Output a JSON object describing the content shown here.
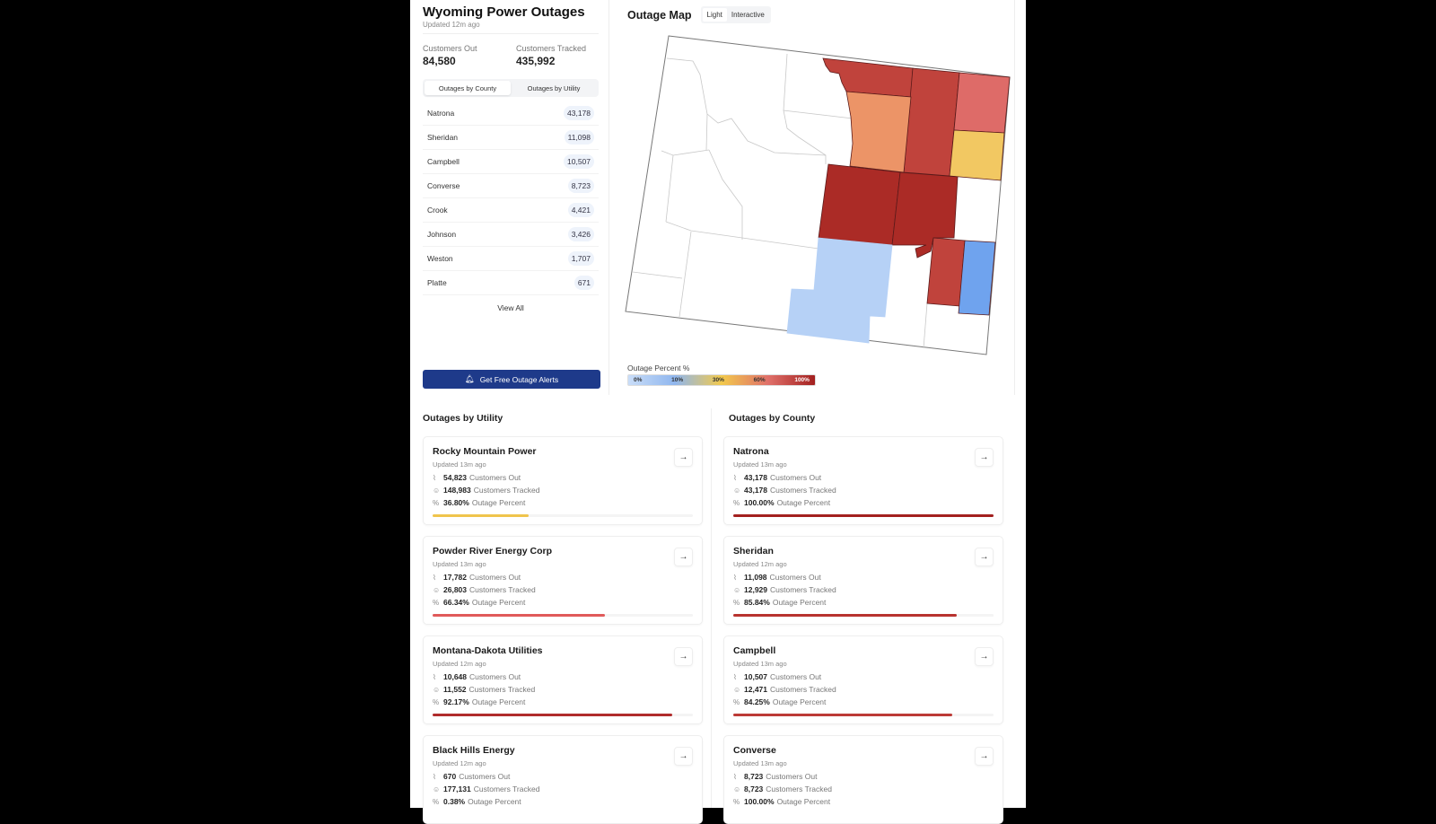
{
  "header": {
    "title": "Wyoming Power Outages",
    "updated": "Updated 12m ago"
  },
  "stats": {
    "out_label": "Customers Out",
    "out_value": "84,580",
    "tracked_label": "Customers Tracked",
    "tracked_value": "435,992"
  },
  "tabs": [
    {
      "label": "Outages by County",
      "active": true
    },
    {
      "label": "Outages by Utility",
      "active": false
    }
  ],
  "county_list": [
    {
      "name": "Natrona",
      "value": "43,178"
    },
    {
      "name": "Sheridan",
      "value": "11,098"
    },
    {
      "name": "Campbell",
      "value": "10,507"
    },
    {
      "name": "Converse",
      "value": "8,723"
    },
    {
      "name": "Crook",
      "value": "4,421"
    },
    {
      "name": "Johnson",
      "value": "3,426"
    },
    {
      "name": "Weston",
      "value": "1,707"
    },
    {
      "name": "Platte",
      "value": "671"
    }
  ],
  "view_all": "View All",
  "alert_button": {
    "label": "Get Free Outage Alerts",
    "icon": "bell-icon",
    "color": "#1e3a8a"
  },
  "map": {
    "title": "Outage Map",
    "modes": [
      "Light",
      "Interactive"
    ],
    "active_mode": "Light",
    "legend": {
      "title": "Outage Percent %",
      "ticks": [
        "0%",
        "10%",
        "30%",
        "60%",
        "100%"
      ],
      "colors": [
        "#c9ddf8",
        "#8fb6ee",
        "#f2c94c",
        "#e0706a",
        "#a3201f"
      ]
    }
  },
  "utilities": {
    "title": "Outages by Utility",
    "items": [
      {
        "name": "Rocky Mountain Power",
        "updated": "Updated 13m ago",
        "out": "54,823",
        "tracked": "148,983",
        "percent": "36.80%",
        "pct": 36.8,
        "color": "#f0c44c"
      },
      {
        "name": "Powder River Energy Corp",
        "updated": "Updated 13m ago",
        "out": "17,782",
        "tracked": "26,803",
        "percent": "66.34%",
        "pct": 66.34,
        "color": "#e05a5a"
      },
      {
        "name": "Montana-Dakota Utilities",
        "updated": "Updated 12m ago",
        "out": "10,648",
        "tracked": "11,552",
        "percent": "92.17%",
        "pct": 92.17,
        "color": "#b02c2c"
      },
      {
        "name": "Black Hills Energy",
        "updated": "Updated 12m ago",
        "out": "670",
        "tracked": "177,131",
        "percent": "0.38%",
        "pct": 0.38,
        "color": "#c9ddf8"
      }
    ]
  },
  "counties": {
    "title": "Outages by County",
    "items": [
      {
        "name": "Natrona",
        "updated": "Updated 13m ago",
        "out": "43,178",
        "tracked": "43,178",
        "percent": "100.00%",
        "pct": 100,
        "color": "#a3201f"
      },
      {
        "name": "Sheridan",
        "updated": "Updated 12m ago",
        "out": "11,098",
        "tracked": "12,929",
        "percent": "85.84%",
        "pct": 85.84,
        "color": "#b8332f"
      },
      {
        "name": "Campbell",
        "updated": "Updated 13m ago",
        "out": "10,507",
        "tracked": "12,471",
        "percent": "84.25%",
        "pct": 84.25,
        "color": "#bc3a36"
      },
      {
        "name": "Converse",
        "updated": "Updated 13m ago",
        "out": "8,723",
        "tracked": "8,723",
        "percent": "100.00%",
        "pct": 100,
        "color": "#a3201f"
      }
    ]
  },
  "labels": {
    "customers_out": "Customers Out",
    "customers_tracked": "Customers Tracked",
    "outage_percent": "Outage Percent"
  }
}
